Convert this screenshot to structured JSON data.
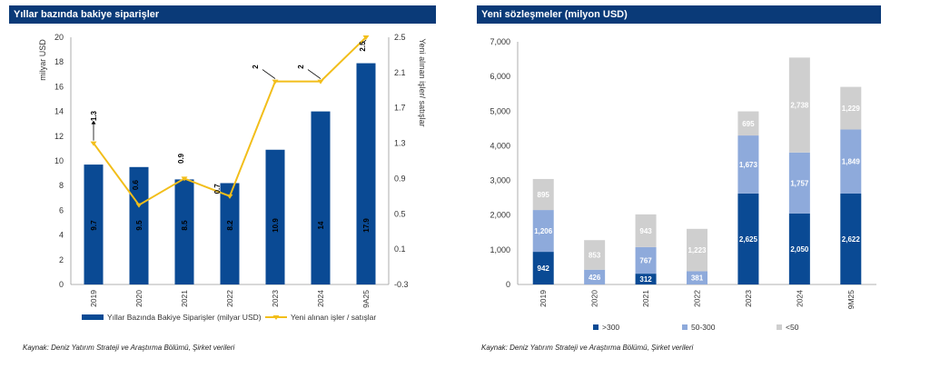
{
  "left": {
    "title": "Yıllar bazında bakiye siparişler",
    "source": "Kaynak: Deniz Yatırım Strateji ve Araştırma Bölümü, Şirket verileri",
    "yleft_label": "milyar USD",
    "yright_label": "Yeni alınan işler/ satışlar",
    "legend_bar": "Yıllar Bazında Bakiye Siparişler (milyar USD)",
    "legend_line": "Yeni alınan işler / satışlar"
  },
  "right": {
    "title": "Yeni sözleşmeler (milyon USD)",
    "source": "Kaynak: Deniz Yatırım Strateji ve Araştırma Bölümü, Şirket verileri",
    "legend": [
      ">300",
      "50-300",
      "<50"
    ]
  },
  "chart_data": [
    {
      "type": "bar",
      "title": "Yıllar bazında bakiye siparişler",
      "categories": [
        "2019",
        "2020",
        "2021",
        "2022",
        "2023",
        "2024",
        "9A25"
      ],
      "series": [
        {
          "name": "Yıllar Bazında Bakiye Siparişler (milyar USD)",
          "axis": "left",
          "values": [
            9.7,
            9.5,
            8.5,
            8.2,
            10.9,
            14,
            17.9
          ],
          "labels": [
            "9.7",
            "9.5",
            "8.5",
            "8.2",
            "10.9",
            "14",
            "17.9"
          ],
          "color": "#0a4a94"
        },
        {
          "name": "Yeni alınan işler / satışlar",
          "axis": "right",
          "type": "line",
          "values": [
            1.3,
            0.6,
            0.9,
            0.7,
            2.0,
            2.0,
            2.5
          ],
          "labels": [
            "1.3",
            "0.6",
            "0.9",
            "0.7",
            "2",
            "2",
            "2.5"
          ],
          "color": "#f2be1a"
        }
      ],
      "ylabel": "milyar USD",
      "ylim": [
        0,
        20
      ],
      "yticks": [
        "0",
        "2",
        "4",
        "6",
        "8",
        "10",
        "12",
        "14",
        "16",
        "18",
        "20"
      ],
      "y2label": "Yeni alınan işler/ satışlar",
      "y2lim": [
        -0.3,
        2.5
      ],
      "y2ticks": [
        "-0.3",
        "0.1",
        "0.5",
        "0.9",
        "1.3",
        "1.7",
        "2.1",
        "2.5"
      ],
      "grid": false,
      "legend_position": "bottom"
    },
    {
      "type": "bar",
      "stacked": true,
      "title": "Yeni sözleşmeler (milyon USD)",
      "categories": [
        "2019",
        "2020",
        "2021",
        "2022",
        "2023",
        "2024",
        "9M25"
      ],
      "series": [
        {
          "name": ">300",
          "values": [
            942,
            0,
            312,
            0,
            2625,
            2050,
            2622
          ],
          "labels": [
            "942",
            "",
            "312",
            "",
            "2,625",
            "2,050",
            "2,622"
          ],
          "color": "#0a4a94"
        },
        {
          "name": "50-300",
          "values": [
            1206,
            426,
            767,
            381,
            1673,
            1757,
            1849
          ],
          "labels": [
            "1,206",
            "426",
            "767",
            "381",
            "1,673",
            "1,757",
            "1,849"
          ],
          "color": "#8eaadb"
        },
        {
          "name": "<50",
          "values": [
            895,
            853,
            943,
            1223,
            695,
            2738,
            1229
          ],
          "labels": [
            "895",
            "853",
            "943",
            "1,223",
            "695",
            "2,738",
            "1,229"
          ],
          "color": "#cfcfcf"
        }
      ],
      "ylim": [
        0,
        7000
      ],
      "yticks": [
        "0",
        "1,000",
        "2,000",
        "3,000",
        "4,000",
        "5,000",
        "6,000",
        "7,000"
      ],
      "grid": false,
      "legend_position": "bottom"
    }
  ]
}
